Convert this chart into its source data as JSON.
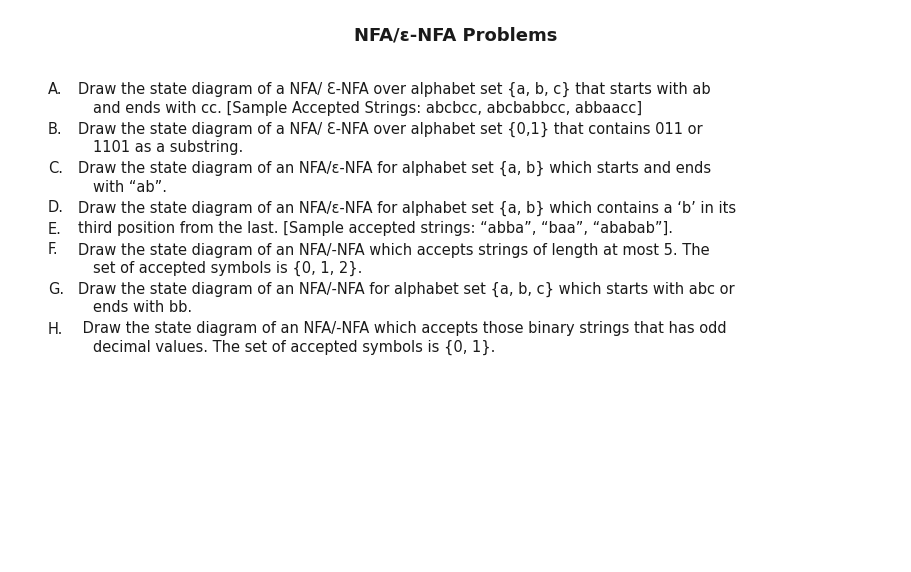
{
  "title": "NFA/ε-NFA Problems",
  "background_color": "#ffffff",
  "text_color": "#1a1a1a",
  "title_fontsize": 13,
  "body_fontsize": 10.5,
  "items": [
    {
      "label": "A.",
      "line1": "Draw the state diagram of a NFA/ Ɛ-NFA over alphabet set {a, b, c} that starts with ab",
      "line2": "and ends with cc. [Sample Accepted Strings: abcbcc, abcbabbcc, abbaacc]"
    },
    {
      "label": "B.",
      "line1": "Draw the state diagram of a NFA/ Ɛ-NFA over alphabet set {0,1} that contains 011 or",
      "line2": "1101 as a substring."
    },
    {
      "label": "C.",
      "line1": "Draw the state diagram of an NFA/ε-NFA for alphabet set {a, b} which starts and ends",
      "line2": "with “ab”."
    },
    {
      "label": "D.",
      "line1": "Draw the state diagram of an NFA/ε-NFA for alphabet set {a, b} which contains a ‘b’ in its",
      "line2": null
    },
    {
      "label": "E.",
      "line1": "third position from the last. [Sample accepted strings: “abba”, “baa”, “ababab”].",
      "line2": null
    },
    {
      "label": "F.",
      "line1": "Draw the state diagram of an NFA/-NFA which accepts strings of length at most 5. The",
      "line2": "set of accepted symbols is {0, 1, 2}."
    },
    {
      "label": "G.",
      "line1": "Draw the state diagram of an NFA/-NFA for alphabet set {a, b, c} which starts with abc or",
      "line2": "ends with bb."
    },
    {
      "label": "H.",
      "line1": " Draw the state diagram of an NFA/-NFA which accepts those binary strings that has odd",
      "line2": "decimal values. The set of accepted symbols is {0, 1}."
    }
  ]
}
